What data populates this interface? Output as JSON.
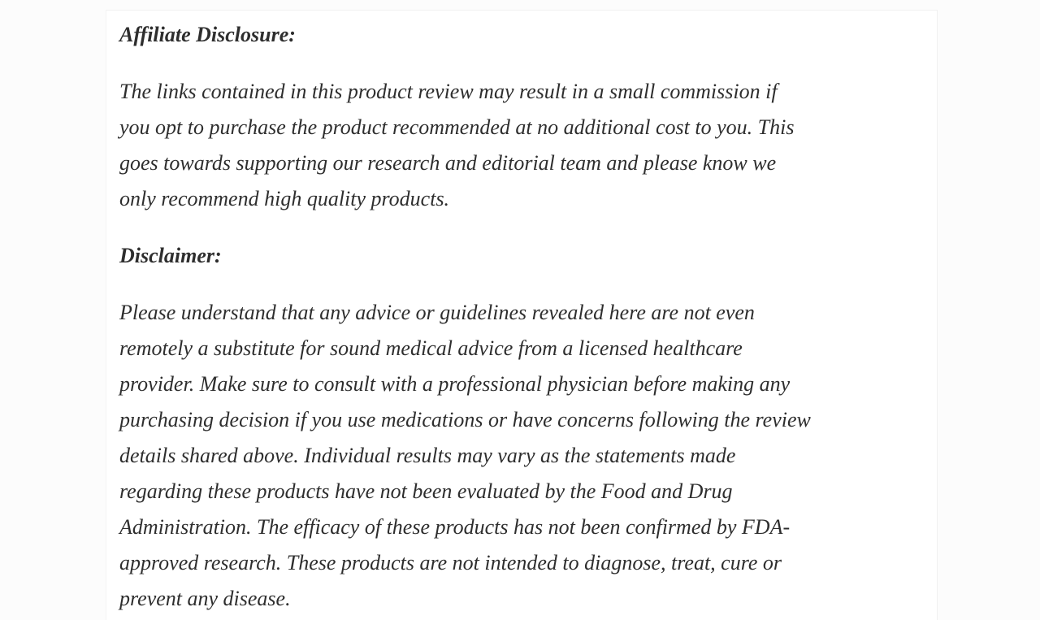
{
  "page": {
    "background_color": "#fcfcfc",
    "card_background_color": "#ffffff",
    "text_color": "#2e2e2e"
  },
  "content": {
    "affiliate": {
      "heading": "Affiliate Disclosure:",
      "paragraph": "The links contained in this product review may result in a small commission if\nyou opt to purchase the product recommended at no additional cost to you. This\ngoes towards supporting our research and editorial team and please know we\nonly recommend high quality products."
    },
    "disclaimer": {
      "heading": "Disclaimer:",
      "paragraph": "Please understand that any advice or guidelines revealed here are not even\nremotely a substitute for sound medical advice from a licensed healthcare\nprovider. Make sure to consult with a professional physician before making any\npurchasing decision if you use medications or have concerns following the review\ndetails shared above. Individual results may vary as the statements made\nregarding these products have not been evaluated by the Food and Drug\nAdministration. The efficacy of these products has not been confirmed by FDA-\napproved research. These products are not intended to diagnose, treat, cure or\nprevent any disease."
    }
  }
}
